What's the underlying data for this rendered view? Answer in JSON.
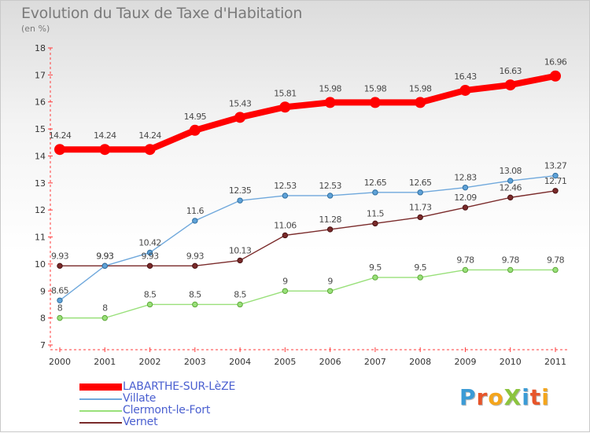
{
  "title": "Evolution du Taux de Taxe d'Habitation",
  "unit_label": "(en %)",
  "logo": {
    "text": "ProXiti",
    "letters": [
      {
        "ch": "P",
        "color": "#3b9bd6"
      },
      {
        "ch": "r",
        "color": "#e7552a"
      },
      {
        "ch": "o",
        "color": "#f4a51c"
      },
      {
        "ch": "X",
        "color": "#8cc43f"
      },
      {
        "ch": "i",
        "color": "#3b9bd6"
      },
      {
        "ch": "t",
        "color": "#e7552a"
      },
      {
        "ch": "i",
        "color": "#f4a51c"
      }
    ]
  },
  "chart_data": {
    "type": "line",
    "title": "Evolution du Taux de Taxe d'Habitation",
    "ylabel": "(en %)",
    "xlabel": "",
    "x": [
      "2000",
      "2001",
      "2002",
      "2003",
      "2004",
      "2005",
      "2006",
      "2007",
      "2008",
      "2009",
      "2010",
      "2011"
    ],
    "ylim": [
      7,
      18
    ],
    "yticks": [
      "7",
      "8",
      "9",
      "10",
      "11",
      "12",
      "13",
      "14",
      "15",
      "16",
      "17",
      "18"
    ],
    "grid": false,
    "legend_position": "bottom-left",
    "series": [
      {
        "name": "LABARTHE-SUR-LèZE",
        "color": "#ff0000",
        "values": [
          14.24,
          14.24,
          14.24,
          14.95,
          15.43,
          15.81,
          15.98,
          15.98,
          15.98,
          16.43,
          16.63,
          16.96
        ],
        "labels": [
          "14.24",
          "14.24",
          "14.24",
          "14.95",
          "15.43",
          "15.81",
          "15.98",
          "15.98",
          "15.98",
          "16.43",
          "16.63",
          "16.96"
        ]
      },
      {
        "name": "Villate",
        "color": "#6fa8dc",
        "values": [
          8.65,
          9.93,
          10.42,
          11.6,
          12.35,
          12.53,
          12.53,
          12.65,
          12.65,
          12.83,
          13.08,
          13.27
        ],
        "labels": [
          "8.65",
          "9.93",
          "10.42",
          "11.6",
          "12.35",
          "12.53",
          "12.53",
          "12.65",
          "12.65",
          "12.83",
          "13.08",
          "13.27"
        ]
      },
      {
        "name": "Clermont-le-Fort",
        "color": "#99e07a",
        "values": [
          8,
          8,
          8.5,
          8.5,
          8.5,
          9,
          9,
          9.5,
          9.5,
          9.78,
          9.78,
          9.78
        ],
        "labels": [
          "8",
          "8",
          "8.5",
          "8.5",
          "8.5",
          "9",
          "9",
          "9.5",
          "9.5",
          "9.78",
          "9.78",
          "9.78"
        ]
      },
      {
        "name": "Vernet",
        "color": "#7a2a2a",
        "values": [
          9.93,
          9.93,
          9.93,
          9.93,
          10.13,
          11.06,
          11.28,
          11.5,
          11.73,
          12.09,
          12.46,
          12.71
        ],
        "labels": [
          "9.93",
          "9.93",
          "9.93",
          "9.93",
          "10.13",
          "11.06",
          "11.28",
          "11.5",
          "11.73",
          "12.09",
          "12.46",
          "12.71"
        ]
      }
    ]
  }
}
